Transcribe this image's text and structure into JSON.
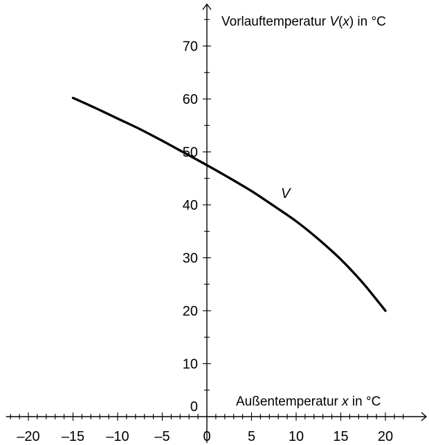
{
  "chart_data": {
    "type": "line",
    "xlabel": {
      "pre": "Außentemperatur ",
      "var": "x",
      "post": " in °C"
    },
    "ylabel": {
      "pre": "Vorlauftemperatur ",
      "var": "V",
      "mid": "(",
      "var2": "x",
      "post": ") in °C"
    },
    "x_ticks": [
      -20,
      -15,
      -10,
      -5,
      0,
      5,
      10,
      15,
      20
    ],
    "x_tick_labels": [
      "–20",
      "–15",
      "–10",
      "–5",
      "0",
      "5",
      "10",
      "15",
      "20"
    ],
    "y_ticks": [
      0,
      10,
      20,
      30,
      40,
      50,
      60,
      70
    ],
    "y_tick_labels": [
      "0",
      "10",
      "20",
      "30",
      "40",
      "50",
      "60",
      "70"
    ],
    "xlim": [
      -22.5,
      24.5
    ],
    "ylim": [
      -2,
      78
    ],
    "grid": false,
    "series": [
      {
        "name": "V",
        "x": [
          -15,
          -12.5,
          -10,
          -7.5,
          -5,
          -2.5,
          0,
          2.5,
          5,
          7.5,
          10,
          12.5,
          15,
          17.5,
          20
        ],
        "y": [
          60.2,
          58.3,
          56.3,
          54.3,
          52.1,
          49.8,
          47.5,
          45.1,
          42.6,
          39.8,
          36.9,
          33.5,
          29.7,
          25.2,
          20
        ]
      }
    ]
  }
}
